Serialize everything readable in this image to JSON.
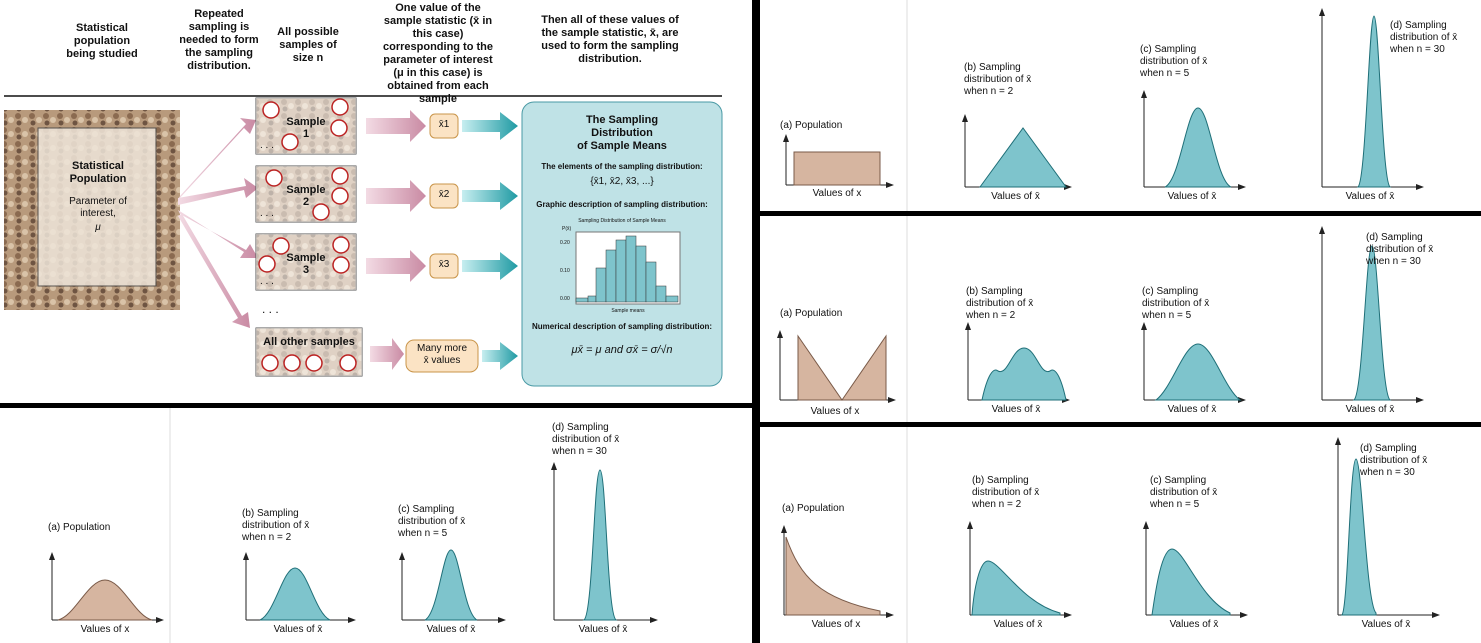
{
  "flow": {
    "headers": [
      "Statistical population being studied",
      "Repeated sampling is needed to form the sampling distribution.",
      "All possible samples of size n",
      "One value of the sample statistic (x̄ in this case) corresponding to the parameter of interest (μ in this case) is obtained from each sample",
      "Then all of these values of the sample statistic, x̄, are used to form the sampling distribution."
    ],
    "population_title": "Statistical Population",
    "population_sub": "Parameter of interest,",
    "population_mu": "μ",
    "samples": [
      {
        "label": "Sample",
        "num": "1"
      },
      {
        "label": "Sample",
        "num": "2"
      },
      {
        "label": "Sample",
        "num": "3"
      }
    ],
    "dots": ". . .",
    "other_samples": "All other samples",
    "xbars": [
      "x̄1",
      "x̄2",
      "x̄3"
    ],
    "many_more": "Many more",
    "many_more_2": "x̄ values",
    "box_title": [
      "The Sampling",
      "Distribution",
      "of Sample Means"
    ],
    "elements_label": "The elements of the sampling distribution:",
    "elements_set": "{x̄1, x̄2, x̄3, ...}",
    "graphic_label": "Graphic description of sampling distribution:",
    "mini_chart_title": "Sampling Distribution of Sample Means",
    "mini_chart_ylabel": "P(x̄)",
    "mini_chart_xlabel": "Sample means",
    "mini_chart_yticks": [
      "0.20",
      "0.10",
      "0.00"
    ],
    "numerical_label": "Numerical description of sampling distribution:",
    "numerical_formula": "μx̄ = μ and σx̄ = σ/√n"
  },
  "panels_text": {
    "population": "(a) Population",
    "values_x": "Values of x",
    "values_xbar": "Values of x̄",
    "b_line1": "(b) Sampling",
    "b_line2": "distribution of x̄",
    "b_line3": "when n = 2",
    "c_line1": "(c) Sampling",
    "c_line2": "distribution of x̄",
    "c_line3": "when n = 5",
    "d_line1": "(d) Sampling",
    "d_line2": "distribution of x̄",
    "d_line3": "when n = 30"
  },
  "colors": {
    "population_fill": "#d6b5a0",
    "sampling_fill": "#7ec4cc",
    "arrow_pink": "#c98aa3",
    "arrow_teal": "#1f9aa3",
    "box_fill": "#bfe2e6"
  }
}
